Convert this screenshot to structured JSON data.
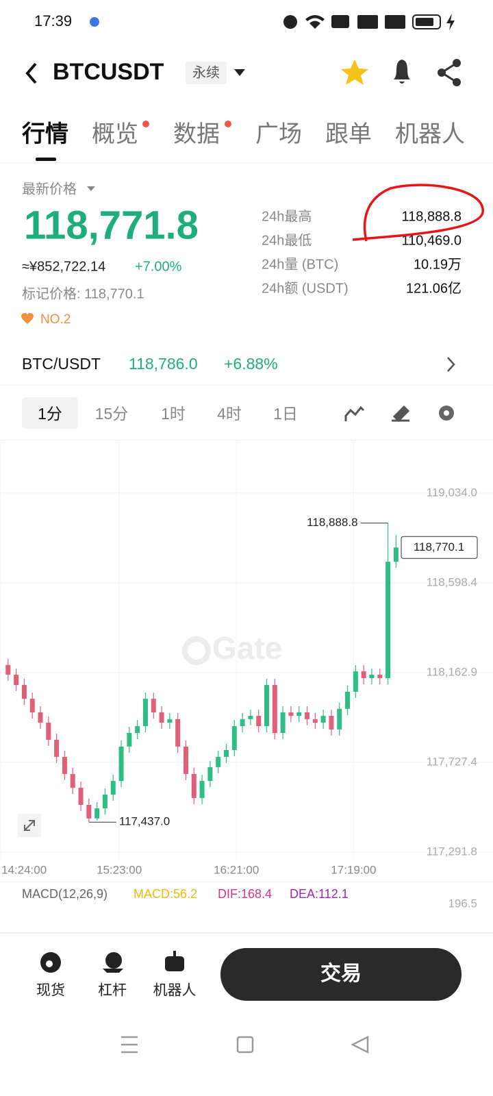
{
  "status_bar": {
    "time": "17:39"
  },
  "header": {
    "symbol": "BTCUSDT",
    "badge": "永续"
  },
  "tabs": [
    "行情",
    "概览",
    "数据",
    "广场",
    "跟单",
    "机器人"
  ],
  "price": {
    "label": "最新价格",
    "last": "118,771.8",
    "cny": "≈¥852,722.14",
    "change": "+7.00%",
    "mark": "标记价格: 118,770.1",
    "rank": "NO.2"
  },
  "stats": [
    {
      "label": "24h最高",
      "value": "118,888.8"
    },
    {
      "label": "24h最低",
      "value": "110,469.0"
    },
    {
      "label": "24h量 (BTC)",
      "value": "10.19万"
    },
    {
      "label": "24h额 (USDT)",
      "value": "121.06亿"
    }
  ],
  "pair": {
    "name": "BTC/USDT",
    "price": "118,786.0",
    "change": "+6.88%"
  },
  "intervals": [
    "1分",
    "15分",
    "1时",
    "4时",
    "1日"
  ],
  "chart_data": {
    "type": "candlestick",
    "watermark": "Gate",
    "x": [
      868,
      872,
      876,
      880,
      884,
      888,
      892,
      896,
      900,
      904,
      908,
      912,
      916,
      920,
      924,
      928,
      932,
      936,
      940,
      944,
      948,
      952,
      956,
      960,
      964,
      968,
      972,
      976,
      980,
      984,
      988,
      992,
      996,
      1000,
      1004,
      1008,
      1012,
      1016,
      1020,
      1024,
      1028,
      1032,
      1036,
      1040,
      1044,
      1048,
      1052,
      1056,
      1060
    ],
    "open": [
      118200,
      118153,
      118103,
      118036,
      117970,
      117920,
      117837,
      117754,
      117671,
      117604,
      117521,
      117455,
      117504,
      117571,
      117637,
      117804,
      117870,
      117903,
      118036,
      117970,
      117920,
      117937,
      117804,
      117671,
      117554,
      117637,
      117704,
      117754,
      117787,
      117903,
      117937,
      117953,
      117903,
      118103,
      117870,
      117970,
      117953,
      117970,
      117937,
      117920,
      117953,
      117887,
      117987,
      118070,
      118169,
      118136,
      118153,
      118136,
      118701
    ],
    "high": [
      118230,
      118183,
      118133,
      118066,
      118000,
      117950,
      117867,
      117784,
      117701,
      117634,
      117551,
      117534,
      117601,
      117667,
      117834,
      117900,
      117933,
      118066,
      118066,
      118000,
      117967,
      117967,
      117834,
      117701,
      117667,
      117734,
      117784,
      117817,
      117933,
      117967,
      117983,
      117983,
      118133,
      118133,
      118000,
      118000,
      118000,
      118000,
      117967,
      117983,
      117983,
      118017,
      118100,
      118199,
      118199,
      118183,
      118183,
      118888.8,
      118830
    ],
    "low": [
      118123,
      118073,
      118006,
      117940,
      117890,
      117807,
      117724,
      117641,
      117574,
      117491,
      117437.0,
      117445,
      117474,
      117541,
      117607,
      117774,
      117840,
      117873,
      117940,
      117890,
      117890,
      117774,
      117641,
      117524,
      117524,
      117607,
      117674,
      117724,
      117757,
      117873,
      117907,
      117873,
      117873,
      117840,
      117840,
      117923,
      117923,
      117907,
      117890,
      117890,
      117857,
      117857,
      117957,
      118040,
      118106,
      118106,
      118106,
      118106,
      118671
    ],
    "close": [
      118153,
      118103,
      118036,
      117970,
      117920,
      117837,
      117754,
      117671,
      117604,
      117521,
      117455,
      117504,
      117571,
      117637,
      117804,
      117870,
      117903,
      118036,
      117970,
      117920,
      117937,
      117804,
      117671,
      117554,
      117637,
      117704,
      117754,
      117787,
      117903,
      117937,
      117953,
      117903,
      118103,
      117870,
      117970,
      117953,
      117970,
      117937,
      117920,
      117953,
      117887,
      117987,
      118070,
      118169,
      118136,
      118153,
      118136,
      118701,
      118770.1
    ],
    "up_color": "#2ebd85",
    "down_color": "#e0607a",
    "xlim": [
      864,
      1108
    ],
    "xticks": [
      {
        "value": 864,
        "label": "14:24:00"
      },
      {
        "value": 923,
        "label": "15:23:00"
      },
      {
        "value": 981,
        "label": "16:21:00"
      },
      {
        "value": 1039,
        "label": "17:19:00"
      }
    ],
    "ylim": [
      117255,
      119283
    ],
    "yticks": [
      {
        "value": 117291.8,
        "label": "117,291.8"
      },
      {
        "value": 117727.4,
        "label": "117,727.4"
      },
      {
        "value": 118162.9,
        "label": "118,162.9"
      },
      {
        "value": 118598.4,
        "label": "118,598.4"
      },
      {
        "value": 119034.0,
        "label": "119,034.0"
      }
    ],
    "grid": true,
    "high_label": {
      "value": 118888.8,
      "label": "118,888.8"
    },
    "low_label": {
      "value": 117437.0,
      "label": "117,437.0"
    },
    "last_label": {
      "value": 118770.1,
      "label": "118,770.1"
    }
  },
  "macd": {
    "title": "MACD(12,26,9)",
    "macd": "MACD:56.2",
    "dif": "DIF:168.4",
    "dea": "DEA:112.1",
    "axis_label": "196.5"
  },
  "bottom_nav": [
    "现货",
    "杠杆",
    "机器人"
  ],
  "trade_button": "交易"
}
